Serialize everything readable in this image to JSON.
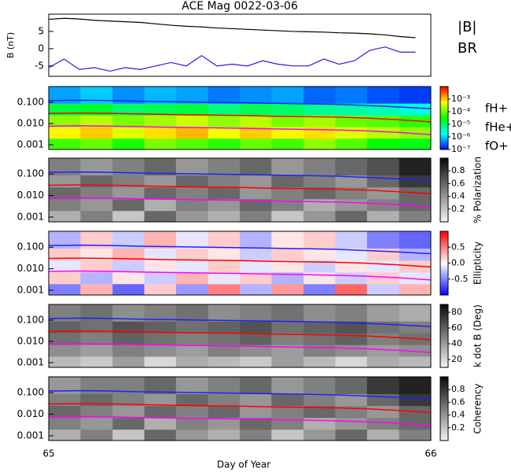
{
  "title": "ACE Mag 0022-03-06",
  "xlabel": "Day of Year",
  "xlim": [
    65,
    66
  ],
  "xticks": [
    65,
    66
  ],
  "time_bins": [
    65.0,
    65.083,
    65.167,
    65.25,
    65.333,
    65.417,
    65.5,
    65.583,
    65.667,
    65.75,
    65.833,
    65.917,
    66.0
  ],
  "freq_bins": [
    0.0006,
    0.002,
    0.007,
    0.025,
    0.09,
    0.55
  ],
  "gyrofrequencies": {
    "series": [
      {
        "name": "fH+",
        "color": "#2020ff",
        "values": [
          0.12,
          0.125,
          0.12,
          0.11,
          0.105,
          0.1,
          0.095,
          0.09,
          0.085,
          0.08,
          0.07,
          0.06,
          0.05
        ]
      },
      {
        "name": "fHe+",
        "color": "#ff0000",
        "values": [
          0.03,
          0.031,
          0.03,
          0.028,
          0.026,
          0.025,
          0.024,
          0.022,
          0.021,
          0.02,
          0.018,
          0.015,
          0.012
        ]
      },
      {
        "name": "fO+",
        "color": "#ff00ff",
        "values": [
          0.0075,
          0.0078,
          0.0075,
          0.007,
          0.0066,
          0.0063,
          0.006,
          0.0056,
          0.0053,
          0.005,
          0.0045,
          0.0038,
          0.003
        ]
      }
    ]
  },
  "chart_data": [
    {
      "type": "line",
      "ylabel": "B (nT)",
      "ylim": [
        -8,
        10
      ],
      "yticks": [
        5,
        0,
        -5
      ],
      "x": [
        65.0,
        65.04,
        65.08,
        65.12,
        65.16,
        65.2,
        65.24,
        65.28,
        65.32,
        65.36,
        65.4,
        65.44,
        65.48,
        65.52,
        65.56,
        65.6,
        65.64,
        65.68,
        65.72,
        65.76,
        65.8,
        65.84,
        65.88,
        65.92,
        65.96
      ],
      "series": [
        {
          "name": "|B|",
          "color": "#000000",
          "values": [
            8.5,
            8.8,
            8.6,
            8.2,
            8.0,
            7.8,
            7.6,
            7.2,
            6.8,
            6.5,
            6.3,
            6.0,
            5.8,
            5.6,
            5.4,
            5.2,
            5.0,
            4.9,
            4.8,
            4.6,
            4.5,
            4.3,
            4.0,
            3.5,
            3.2
          ]
        },
        {
          "name": "BR",
          "color": "#2020e0",
          "values": [
            -5.5,
            -3,
            -6,
            -5.5,
            -6.5,
            -5.5,
            -6,
            -5,
            -4,
            -5,
            -2,
            -5,
            -4.5,
            -5,
            -3.5,
            -4.5,
            -5,
            -5,
            -3,
            -4.5,
            -3.5,
            -0.5,
            0.5,
            -1,
            -1
          ]
        }
      ]
    },
    {
      "type": "spectrogram",
      "colormap": "rainbow",
      "ylim": [
        0.0006,
        0.55
      ],
      "yticks": [
        {
          "value": 0.1,
          "label": "0.100"
        },
        {
          "value": 0.01,
          "label": "0.010"
        },
        {
          "value": 0.001,
          "label": "0.001"
        }
      ],
      "zlim": [
        -7,
        -2
      ],
      "zticks": [
        {
          "value": -3,
          "label": "10⁻³"
        },
        {
          "value": -4,
          "label": "10⁻⁴"
        },
        {
          "value": -5,
          "label": "10⁻⁵"
        },
        {
          "value": -6,
          "label": "10⁻⁶"
        },
        {
          "value": -7,
          "label": "10⁻⁷"
        }
      ],
      "z": [
        [
          -4.2,
          -4.0,
          -4.4,
          -3.9,
          -4.1,
          -4.3,
          -4.0,
          -4.2,
          -3.8,
          -4.1,
          -4.5,
          -4.6
        ],
        [
          -3.2,
          -3.0,
          -3.4,
          -3.1,
          -2.9,
          -3.3,
          -3.0,
          -3.2,
          -3.1,
          -3.4,
          -3.6,
          -3.8
        ],
        [
          -3.8,
          -3.6,
          -3.9,
          -3.7,
          -3.5,
          -3.8,
          -3.6,
          -3.9,
          -3.7,
          -4.0,
          -4.1,
          -4.3
        ],
        [
          -4.8,
          -4.7,
          -5.0,
          -4.9,
          -4.8,
          -5.1,
          -4.9,
          -5.0,
          -5.2,
          -5.3,
          -5.4,
          -5.6
        ],
        [
          -6.2,
          -6.0,
          -6.3,
          -6.1,
          -6.2,
          -6.4,
          -6.3,
          -6.2,
          -6.5,
          -6.4,
          -6.6,
          -6.7
        ]
      ]
    },
    {
      "type": "spectrogram",
      "colormap": "gray_r",
      "zlabel": "% Polarization",
      "ylim": [
        0.0006,
        0.55
      ],
      "yticks": [
        {
          "value": 0.1,
          "label": "0.100"
        },
        {
          "value": 0.01,
          "label": "0.010"
        },
        {
          "value": 0.001,
          "label": "0.001"
        }
      ],
      "zlim": [
        0,
        1
      ],
      "zticks": [
        0.8,
        0.6,
        0.4,
        0.2
      ],
      "z": [
        [
          0.3,
          0.5,
          0.2,
          0.6,
          0.4,
          0.3,
          0.5,
          0.2,
          0.4,
          0.6,
          0.3,
          0.5
        ],
        [
          0.5,
          0.4,
          0.6,
          0.3,
          0.5,
          0.4,
          0.6,
          0.5,
          0.3,
          0.4,
          0.5,
          0.6
        ],
        [
          0.6,
          0.5,
          0.4,
          0.6,
          0.5,
          0.6,
          0.4,
          0.5,
          0.6,
          0.5,
          0.4,
          0.6
        ],
        [
          0.4,
          0.6,
          0.5,
          0.4,
          0.6,
          0.5,
          0.4,
          0.6,
          0.5,
          0.4,
          0.6,
          0.8
        ],
        [
          0.5,
          0.4,
          0.5,
          0.6,
          0.4,
          0.5,
          0.6,
          0.4,
          0.5,
          0.6,
          0.7,
          0.9
        ]
      ]
    },
    {
      "type": "spectrogram",
      "colormap": "bwr",
      "zlabel": "Ellipticity",
      "ylim": [
        0.0006,
        0.55
      ],
      "yticks": [
        {
          "value": 0.1,
          "label": "0.100"
        },
        {
          "value": 0.01,
          "label": "0.010"
        },
        {
          "value": 0.001,
          "label": "0.001"
        }
      ],
      "zlim": [
        -1,
        1
      ],
      "zticks": [
        0.5,
        {
          "value": 0,
          "label": "0.0"
        },
        -0.5
      ],
      "z": [
        [
          -0.5,
          0.3,
          -0.6,
          0.2,
          -0.4,
          0.5,
          -0.3,
          0.4,
          -0.5,
          0.6,
          -0.2,
          0.3
        ],
        [
          0.2,
          -0.3,
          0.1,
          -0.2,
          0.3,
          -0.1,
          0.2,
          -0.3,
          0.1,
          -0.2,
          0.2,
          -0.1
        ],
        [
          -0.1,
          0.2,
          -0.2,
          0.1,
          -0.1,
          0.2,
          -0.1,
          0.1,
          -0.2,
          0.1,
          -0.1,
          0.2
        ],
        [
          0.2,
          0.1,
          0.3,
          -0.1,
          0.2,
          0.1,
          -0.2,
          0.2,
          0.1,
          -0.1,
          0.2,
          -0.3
        ],
        [
          -0.3,
          0.2,
          -0.2,
          0.3,
          -0.1,
          0.2,
          -0.3,
          0.1,
          0.2,
          -0.2,
          -0.5,
          -0.6
        ]
      ]
    },
    {
      "type": "spectrogram",
      "colormap": "gray_r",
      "zlabel": "k dot B (Deg)",
      "ylim": [
        0.0006,
        0.55
      ],
      "yticks": [
        {
          "value": 0.1,
          "label": "0.100"
        },
        {
          "value": 0.01,
          "label": "0.010"
        },
        {
          "value": 0.001,
          "label": "0.001"
        }
      ],
      "zlim": [
        10,
        90
      ],
      "zticks": [
        80,
        60,
        40,
        20
      ],
      "z": [
        [
          30,
          25,
          40,
          20,
          35,
          30,
          25,
          40,
          30,
          20,
          35,
          30
        ],
        [
          45,
          40,
          50,
          45,
          40,
          50,
          45,
          40,
          50,
          45,
          40,
          45
        ],
        [
          55,
          50,
          60,
          55,
          50,
          55,
          60,
          50,
          55,
          60,
          50,
          55
        ],
        [
          60,
          55,
          65,
          60,
          55,
          60,
          65,
          55,
          60,
          65,
          55,
          50
        ],
        [
          50,
          55,
          45,
          50,
          55,
          45,
          50,
          55,
          45,
          50,
          40,
          35
        ]
      ]
    },
    {
      "type": "spectrogram",
      "colormap": "gray_r",
      "zlabel": "Coherency",
      "ylim": [
        0.0006,
        0.55
      ],
      "yticks": [
        {
          "value": 0.1,
          "label": "0.100"
        },
        {
          "value": 0.01,
          "label": "0.010"
        },
        {
          "value": 0.001,
          "label": "0.001"
        }
      ],
      "zlim": [
        0,
        1
      ],
      "zticks": [
        0.8,
        0.6,
        0.4,
        0.2
      ],
      "z": [
        [
          0.3,
          0.5,
          0.2,
          0.6,
          0.4,
          0.3,
          0.5,
          0.2,
          0.4,
          0.6,
          0.3,
          0.5
        ],
        [
          0.5,
          0.4,
          0.6,
          0.3,
          0.5,
          0.4,
          0.6,
          0.5,
          0.3,
          0.4,
          0.5,
          0.6
        ],
        [
          0.6,
          0.5,
          0.4,
          0.6,
          0.5,
          0.6,
          0.4,
          0.5,
          0.6,
          0.5,
          0.4,
          0.6
        ],
        [
          0.5,
          0.6,
          0.5,
          0.4,
          0.6,
          0.5,
          0.4,
          0.6,
          0.5,
          0.4,
          0.6,
          0.8
        ],
        [
          0.4,
          0.5,
          0.5,
          0.6,
          0.4,
          0.5,
          0.6,
          0.4,
          0.5,
          0.6,
          0.8,
          0.9
        ]
      ]
    }
  ]
}
